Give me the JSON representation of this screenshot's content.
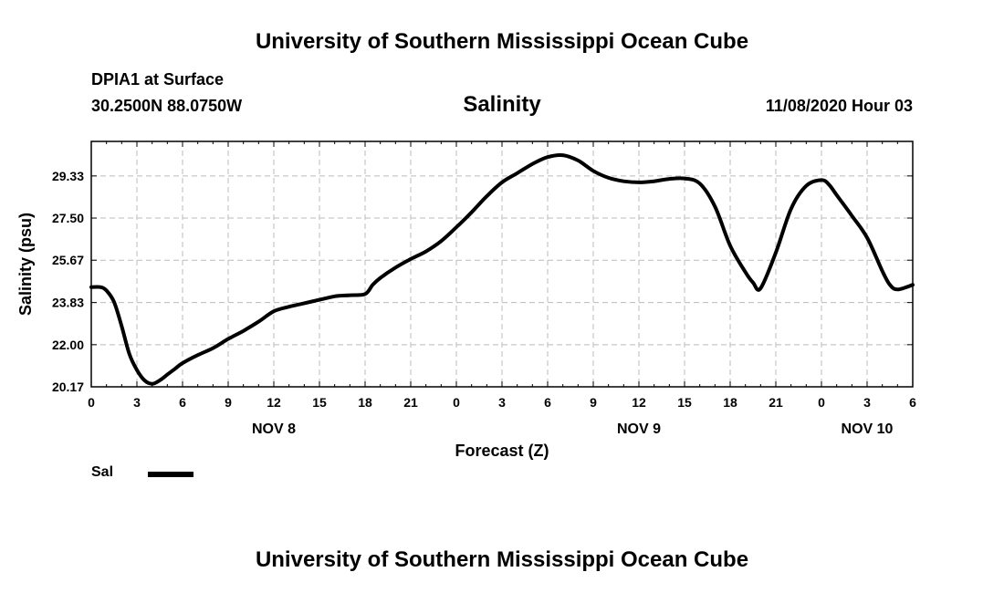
{
  "page": {
    "title_top": "University of Southern Mississippi Ocean Cube",
    "title_bottom": "University of Southern Mississippi Ocean Cube",
    "station": "DPIA1 at Surface",
    "coords": "30.2500N 88.0750W",
    "variable": "Salinity",
    "datetime": "11/08/2020 Hour 03"
  },
  "chart_data": {
    "type": "line",
    "xlabel": "Forecast (Z)",
    "ylabel": "Salinity (psu)",
    "ylim": [
      20.17,
      30.83
    ],
    "yticks": [
      "20.17",
      "22.00",
      "23.83",
      "25.67",
      "27.50",
      "29.33"
    ],
    "ytick_values": [
      20.17,
      22.0,
      23.83,
      25.67,
      27.5,
      29.33
    ],
    "xlim": [
      0,
      54
    ],
    "xticks": [
      "0",
      "3",
      "6",
      "9",
      "12",
      "15",
      "18",
      "21",
      "0",
      "3",
      "6",
      "9",
      "12",
      "15",
      "18",
      "21",
      "0",
      "3",
      "6"
    ],
    "day_labels": [
      {
        "label": "NOV 8",
        "hour": 12
      },
      {
        "label": "NOV 9",
        "hour": 36
      },
      {
        "label": "NOV 10",
        "hour": 51
      }
    ],
    "grid": true,
    "legend": "bottom-left",
    "series": [
      {
        "name": "Sal",
        "color": "#000000",
        "x": [
          0,
          0.6,
          1,
          1.5,
          2,
          2.5,
          3,
          3.5,
          4,
          4.5,
          5,
          5.5,
          6,
          7,
          8,
          9,
          10,
          11,
          12,
          13,
          14,
          15,
          16,
          17,
          18,
          18.5,
          19,
          20,
          21,
          22,
          23,
          24,
          25,
          26,
          27,
          28,
          29,
          30,
          31,
          32,
          33,
          34,
          35,
          36,
          37,
          38,
          39,
          40,
          41,
          42,
          43,
          43.5,
          44,
          45,
          46,
          47,
          48,
          48.5,
          49,
          50,
          51,
          52,
          52.5,
          53,
          54
        ],
        "y": [
          24.5,
          24.5,
          24.35,
          23.85,
          22.8,
          21.6,
          20.9,
          20.45,
          20.3,
          20.45,
          20.7,
          20.95,
          21.2,
          21.55,
          21.85,
          22.25,
          22.6,
          23.0,
          23.45,
          23.65,
          23.8,
          23.95,
          24.1,
          24.15,
          24.2,
          24.6,
          24.9,
          25.35,
          25.72,
          26.05,
          26.5,
          27.1,
          27.75,
          28.45,
          29.05,
          29.45,
          29.85,
          30.15,
          30.23,
          30.0,
          29.55,
          29.25,
          29.1,
          29.05,
          29.1,
          29.2,
          29.22,
          29.0,
          28.0,
          26.3,
          25.15,
          24.7,
          24.45,
          26.0,
          27.9,
          28.9,
          29.15,
          28.95,
          28.5,
          27.6,
          26.65,
          25.2,
          24.6,
          24.4,
          24.6
        ]
      }
    ]
  }
}
